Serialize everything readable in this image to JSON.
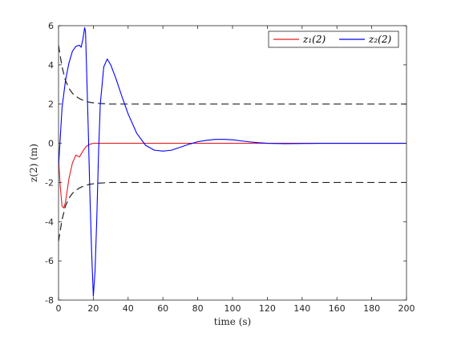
{
  "chart_data": {
    "type": "line",
    "xlabel": "time (s)",
    "ylabel": "z(2) (m)",
    "xlim": [
      0,
      200
    ],
    "ylim": [
      -8,
      6
    ],
    "xticks": [
      0,
      20,
      40,
      60,
      80,
      100,
      120,
      140,
      160,
      180,
      200
    ],
    "yticks": [
      -8,
      -6,
      -4,
      -2,
      0,
      2,
      4,
      6
    ],
    "grid": false,
    "legend_position": "top-right",
    "series": [
      {
        "name": "z₁(2)",
        "color": "#e41a1c",
        "style": "solid",
        "x": [
          0,
          1,
          2,
          3,
          4,
          6,
          8,
          10,
          12,
          14,
          16,
          18,
          20,
          25,
          30,
          50,
          100,
          200
        ],
        "y": [
          -0.8,
          -2.2,
          -3.2,
          -3.3,
          -3.0,
          -1.8,
          -1.0,
          -0.6,
          -0.7,
          -0.4,
          -0.15,
          -0.05,
          0.0,
          0.0,
          0.0,
          0.0,
          0.0,
          0.0
        ]
      },
      {
        "name": "z₂(2)",
        "color": "#0000ff",
        "style": "solid",
        "x": [
          0,
          1,
          2,
          4,
          6,
          8,
          10,
          12,
          13,
          14,
          15,
          15.5,
          16,
          17,
          18,
          19,
          20,
          21,
          22,
          23,
          24,
          26,
          28,
          30,
          33,
          36,
          40,
          45,
          50,
          55,
          60,
          65,
          70,
          75,
          80,
          85,
          90,
          95,
          100,
          105,
          110,
          115,
          120,
          130,
          140,
          150,
          160,
          180,
          200
        ],
        "y": [
          -1.2,
          0.3,
          1.8,
          3.2,
          4.1,
          4.7,
          4.95,
          5.0,
          4.9,
          5.3,
          5.9,
          5.7,
          4.2,
          1.0,
          -2.5,
          -5.5,
          -7.8,
          -6.5,
          -3.8,
          -0.5,
          2.0,
          3.9,
          4.3,
          4.0,
          3.3,
          2.5,
          1.5,
          0.5,
          -0.1,
          -0.35,
          -0.4,
          -0.35,
          -0.2,
          -0.05,
          0.08,
          0.15,
          0.2,
          0.2,
          0.18,
          0.12,
          0.07,
          0.03,
          0.0,
          -0.02,
          -0.01,
          0.0,
          0.0,
          0.0,
          0.0
        ]
      }
    ],
    "bounds": [
      {
        "color": "#000000",
        "style": "dashed",
        "x": [
          0,
          2,
          4,
          6,
          8,
          10,
          12,
          15,
          18,
          22,
          26,
          30,
          200
        ],
        "y": [
          5.0,
          3.9,
          3.2,
          2.8,
          2.55,
          2.4,
          2.28,
          2.16,
          2.09,
          2.04,
          2.02,
          2.0,
          2.0
        ]
      },
      {
        "color": "#000000",
        "style": "dashed",
        "x": [
          0,
          2,
          4,
          6,
          8,
          10,
          12,
          15,
          18,
          22,
          26,
          30,
          200
        ],
        "y": [
          -5.0,
          -3.9,
          -3.2,
          -2.8,
          -2.55,
          -2.4,
          -2.28,
          -2.16,
          -2.09,
          -2.04,
          -2.02,
          -2.0,
          -2.0
        ]
      }
    ]
  }
}
